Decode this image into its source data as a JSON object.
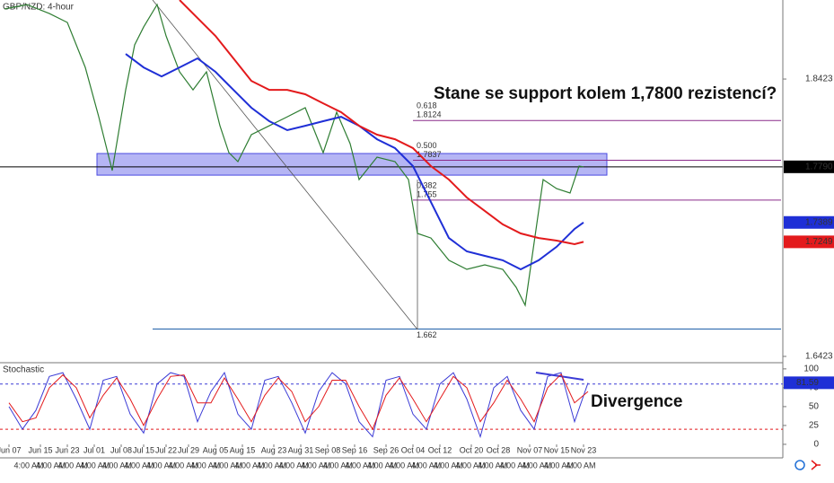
{
  "chart_data": {
    "type": "line",
    "title": "GBP/NZD: 4-hour",
    "xlim": [
      -2,
      172.4
    ],
    "ylim": [
      1.6384,
      1.8993
    ],
    "yticks": [
      1.6423,
      1.8423
    ],
    "xticks": [
      {
        "value": 0,
        "label": "Jun 07"
      },
      {
        "value": 7,
        "label": "Jun 15"
      },
      {
        "value": 13,
        "label": "Jun 23"
      },
      {
        "value": 19,
        "label": "Jul 01"
      },
      {
        "value": 25,
        "label": "Jul 08"
      },
      {
        "value": 30,
        "label": "Jul 15"
      },
      {
        "value": 35,
        "label": "Jul 22"
      },
      {
        "value": 40,
        "label": "Jul 29"
      },
      {
        "value": 46,
        "label": "Aug 05"
      },
      {
        "value": 52,
        "label": "Aug 15"
      },
      {
        "value": 59,
        "label": "Aug 23"
      },
      {
        "value": 65,
        "label": "Aug 31"
      },
      {
        "value": 71,
        "label": "Sep 08"
      },
      {
        "value": 77,
        "label": "Sep 16"
      },
      {
        "value": 84,
        "label": "Sep 26"
      },
      {
        "value": 90,
        "label": "Oct 04"
      },
      {
        "value": 96,
        "label": "Oct 12"
      },
      {
        "value": 103,
        "label": "Oct 20"
      },
      {
        "value": 109,
        "label": "Oct 28"
      },
      {
        "value": 116,
        "label": "Nov 07"
      },
      {
        "value": 122,
        "label": "Nov 15"
      },
      {
        "value": 128,
        "label": "Nov 23"
      }
    ],
    "time_labels": [
      "4:00 AM",
      "4:00 AM",
      "4:00 AM",
      "4:00 AM",
      "4:00 AM",
      "4:00 AM",
      "4:00 AM",
      "4:00 AM",
      "4:00 AM",
      "4:00 AM",
      "4:00 AM",
      "4:00 AM",
      "4:00 AM",
      "4:00 AM",
      "4:00 AM",
      "4:00 AM",
      "4:00 AM",
      "4:00 AM",
      "4:00 AM",
      "4:00 AM",
      "4:00 AM",
      "4:00 AM",
      "4:00 AM",
      "4:00 AM",
      "4:00 AM",
      "4:00 AM"
    ],
    "series": [
      {
        "color": "#2e7d32",
        "x": [
          -1,
          4,
          9,
          13,
          17,
          20,
          23,
          26,
          28,
          30,
          33,
          35,
          38,
          41,
          44,
          47,
          49,
          51,
          54,
          58,
          62,
          66,
          70,
          73,
          76,
          78,
          82,
          86,
          89,
          91,
          94,
          98,
          102,
          106,
          110,
          113,
          115,
          117,
          119,
          122,
          125,
          127,
          128
        ],
        "values": [
          1.8928,
          1.896,
          1.8895,
          1.8831,
          1.8507,
          1.8151,
          1.7763,
          1.8345,
          1.8669,
          1.8798,
          1.896,
          1.8734,
          1.8475,
          1.8345,
          1.8475,
          1.8086,
          1.7892,
          1.7828,
          1.8022,
          1.8086,
          1.8151,
          1.8216,
          1.7892,
          1.8184,
          1.7957,
          1.7698,
          1.786,
          1.7828,
          1.7698,
          1.731,
          1.7277,
          1.7116,
          1.7051,
          1.7083,
          1.7051,
          1.6921,
          1.6792,
          1.7245,
          1.7698,
          1.7633,
          1.7601,
          1.7795,
          1.779
        ]
      },
      {
        "color": "#1f2fd6",
        "x": [
          26,
          30,
          34,
          38,
          42,
          46,
          50,
          54,
          58,
          62,
          66,
          70,
          74,
          78,
          82,
          86,
          90,
          94,
          98,
          102,
          106,
          110,
          114,
          118,
          122,
          126,
          128
        ],
        "values": [
          1.8604,
          1.8507,
          1.8442,
          1.8507,
          1.8572,
          1.8475,
          1.8345,
          1.8216,
          1.8119,
          1.8054,
          1.8086,
          1.8119,
          1.8151,
          1.8086,
          1.7989,
          1.7925,
          1.7795,
          1.7536,
          1.7277,
          1.718,
          1.7148,
          1.7116,
          1.7051,
          1.7116,
          1.7213,
          1.7342,
          1.7389
        ]
      },
      {
        "color": "#e31a1c",
        "x": [
          38,
          42,
          46,
          50,
          54,
          58,
          62,
          66,
          70,
          74,
          78,
          82,
          86,
          90,
          94,
          98,
          102,
          106,
          110,
          114,
          118,
          122,
          126,
          128
        ],
        "values": [
          1.8993,
          1.8863,
          1.8734,
          1.8572,
          1.841,
          1.8345,
          1.8345,
          1.8313,
          1.8248,
          1.8184,
          1.8086,
          1.8022,
          1.7989,
          1.7925,
          1.7795,
          1.7698,
          1.7569,
          1.7472,
          1.7375,
          1.731,
          1.7277,
          1.7258,
          1.7232,
          1.7249
        ]
      }
    ],
    "zone": [
      1.773,
      1.7886
    ],
    "hline": 1.779,
    "fib_levels": [
      {
        "ratio": "0.618",
        "price": 1.8124
      },
      {
        "ratio": "0.500",
        "price": 1.7837
      },
      {
        "ratio": "0.382",
        "price": 1.755
      },
      {
        "price": 1.662
      }
    ],
    "price_tags": [
      {
        "value": 1.779,
        "label": "1.7790",
        "color": "#000000"
      },
      {
        "value": 1.7389,
        "label": "1.7389",
        "color": "#1f2fd6"
      },
      {
        "value": 1.7249,
        "label": "1.7249",
        "color": "#e31a1c"
      }
    ],
    "annotations": [
      "Stane se support kolem 1,7800 rezistencí?",
      "Divergence"
    ],
    "stochastic": {
      "title": "Stochastic",
      "ylim": [
        -12,
        107
      ],
      "yticks": [
        0,
        25,
        50,
        75,
        100
      ],
      "levels": [
        20,
        80
      ],
      "x": [
        0,
        3,
        6,
        9,
        12,
        15,
        18,
        21,
        24,
        27,
        30,
        33,
        36,
        39,
        42,
        45,
        48,
        51,
        54,
        57,
        60,
        63,
        66,
        69,
        72,
        75,
        78,
        81,
        84,
        87,
        90,
        93,
        96,
        99,
        102,
        105,
        108,
        111,
        114,
        117,
        120,
        123,
        126,
        129
      ],
      "series": [
        {
          "color": "#3b3bd6",
          "values": [
            50,
            20,
            45,
            90,
            95,
            60,
            20,
            85,
            90,
            40,
            15,
            80,
            95,
            90,
            30,
            70,
            95,
            40,
            20,
            85,
            90,
            55,
            15,
            70,
            95,
            80,
            30,
            10,
            85,
            90,
            40,
            20,
            80,
            95,
            60,
            10,
            75,
            90,
            45,
            20,
            90,
            95,
            30,
            81.59
          ]
        },
        {
          "color": "#e31a1c",
          "values": [
            55,
            30,
            35,
            75,
            92,
            75,
            35,
            65,
            88,
            60,
            25,
            60,
            90,
            92,
            55,
            55,
            88,
            60,
            30,
            65,
            88,
            70,
            30,
            50,
            85,
            85,
            50,
            20,
            65,
            88,
            60,
            30,
            60,
            90,
            75,
            30,
            55,
            85,
            60,
            30,
            75,
            93,
            55,
            70
          ]
        }
      ],
      "tag": {
        "value": 81.59,
        "color": "#1f2fd6"
      }
    }
  }
}
